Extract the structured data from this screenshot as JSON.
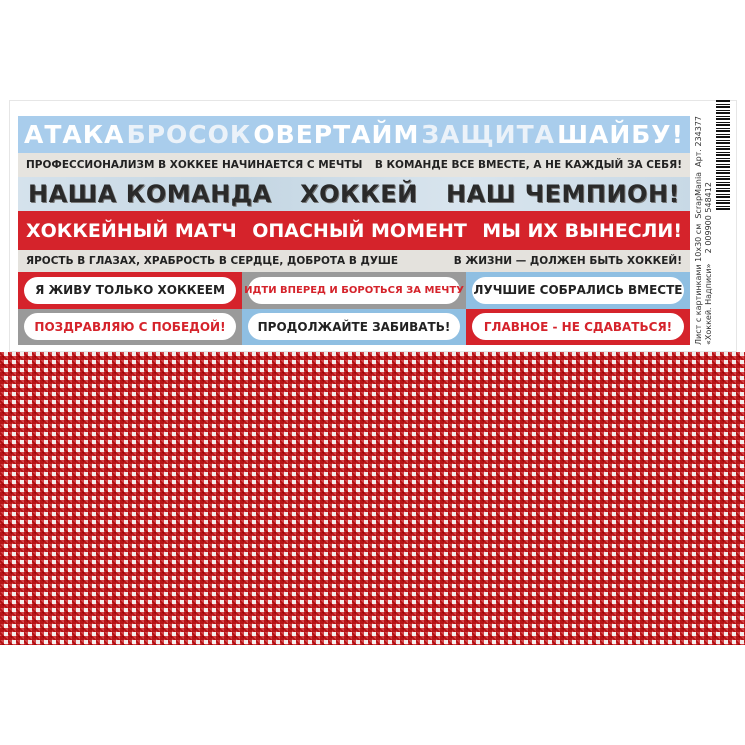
{
  "row1": [
    "АТАКА",
    "БРОСОК",
    "ОВЕРТАЙМ",
    "ЗАЩИТА",
    "ШАЙБУ!"
  ],
  "row2": [
    "ПРОФЕССИОНАЛИЗМ В ХОККЕЕ НАЧИНАЕТСЯ С МЕЧТЫ",
    "В КОМАНДЕ ВСЕ ВМЕСТЕ, А НЕ КАЖДЫЙ ЗА СЕБЯ!"
  ],
  "row3": [
    "НАША КОМАНДА",
    "ХОККЕЙ",
    "НАШ ЧЕМПИОН!"
  ],
  "row4": [
    "ХОККЕЙНЫЙ МАТЧ",
    "ОПАСНЫЙ МОМЕНТ",
    "МЫ ИХ ВЫНЕСЛИ!"
  ],
  "row5": [
    "ЯРОСТЬ В ГЛАЗАХ, ХРАБРОСТЬ В СЕРДЦЕ, ДОБРОТА В ДУШЕ",
    "В ЖИЗНИ — ДОЛЖЕН БЫТЬ ХОККЕЙ!"
  ],
  "pills": [
    "Я ЖИВУ ТОЛЬКО ХОККЕЕМ",
    "ИДТИ ВПЕРЕД И БОРОТЬСЯ ЗА МЕЧТУ",
    "ЛУЧШИЕ СОБРАЛИСЬ ВМЕСТЕ",
    "ПОЗДРАВЛЯЮ С ПОБЕДОЙ!",
    "ПРОДОЛЖАЙТЕ ЗАБИВАТЬ!",
    "ГЛАВНОЕ - НЕ СДАВАТЬСЯ!"
  ],
  "side": {
    "line1": "Лист с картинками 10х30 см",
    "line2": "«Хоккей. Надписи»",
    "brand": "ScrapMania",
    "article": "Арт. 234377",
    "barcode_number": "2 009900 548412"
  },
  "colors": {
    "red": "#d5232b",
    "blue": "#a9cdec",
    "grey": "#9a9a9a"
  }
}
